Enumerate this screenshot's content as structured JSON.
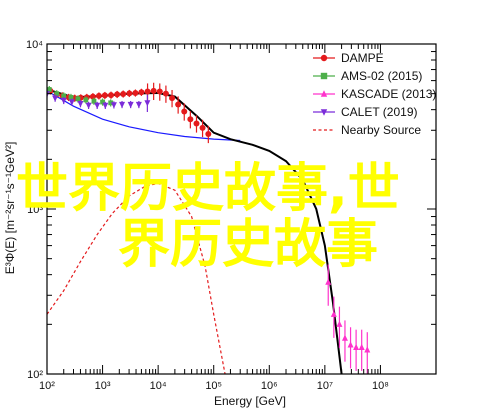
{
  "chart_data": {
    "type": "scatter",
    "xlabel": "Energy [GeV]",
    "ylabel": "E³Φ(E) [m⁻²sr⁻¹s⁻¹GeV²]",
    "xscale": "log",
    "yscale": "log",
    "xlim": [
      100,
      1000000000
    ],
    "ylim": [
      100,
      10000
    ],
    "x_ticks": [
      "10²",
      "10³",
      "10⁴",
      "10⁵",
      "10⁶",
      "10⁷",
      "10⁸"
    ],
    "y_ticks": [
      "10²",
      "10³",
      "10⁴"
    ],
    "legend_position": "top-right",
    "series": [
      {
        "name": "DAMPE",
        "color": "#e41a1c",
        "marker": "circle",
        "x": [
          55,
          70,
          90,
          115,
          150,
          190,
          245,
          315,
          405,
          520,
          670,
          860,
          1100,
          1420,
          1830,
          2350,
          3030,
          3900,
          5000,
          6450,
          8300,
          10700,
          13800,
          17800,
          22900,
          29500,
          38000,
          49000,
          63000,
          80000
        ],
        "y": [
          5900,
          5700,
          5450,
          5200,
          4950,
          4850,
          4750,
          4700,
          4720,
          4750,
          4800,
          4850,
          4880,
          4900,
          4950,
          4980,
          5020,
          5050,
          5100,
          5150,
          5200,
          5150,
          5000,
          4700,
          4300,
          3900,
          3500,
          3300,
          3100,
          2850
        ]
      },
      {
        "name": "AMS-02 (2015)",
        "color": "#4daf4a",
        "marker": "square",
        "x": [
          45,
          60,
          80,
          110,
          150,
          200,
          270,
          360,
          500,
          700,
          1000,
          1400
        ],
        "y": [
          6900,
          6200,
          5700,
          5300,
          5000,
          4850,
          4750,
          4650,
          4580,
          4500,
          4450,
          4400
        ]
      },
      {
        "name": "KASCADE (2013)",
        "color": "#ff33cc",
        "marker": "triangle",
        "x": [
          11500000,
          14500000,
          18300000,
          23000000,
          29000000,
          36500000,
          46000000,
          58000000
        ],
        "y": [
          360,
          230,
          200,
          165,
          150,
          145,
          145,
          140
        ]
      },
      {
        "name": "CALET (2019)",
        "color": "#7b2cd9",
        "marker": "triangle-down",
        "x": [
          50,
          70,
          100,
          140,
          200,
          280,
          400,
          560,
          800,
          1120,
          1600,
          2240,
          3200,
          4500,
          6400
        ],
        "y": [
          5900,
          5400,
          5000,
          4700,
          4550,
          4450,
          4350,
          4250,
          4250,
          4250,
          4280,
          4300,
          4300,
          4300,
          4400
        ]
      },
      {
        "name": "Nearby Source",
        "color": "#e41a1c",
        "style": "dashed",
        "x": [
          100,
          200,
          400,
          800,
          1500,
          3000,
          6000,
          10000,
          20000,
          40000,
          70000,
          100000,
          160000
        ],
        "y": [
          230,
          320,
          480,
          700,
          940,
          1200,
          1380,
          1430,
          1300,
          900,
          450,
          230,
          100
        ]
      }
    ],
    "model_lines": [
      {
        "color": "#1a1aff",
        "x": [
          60,
          100,
          300,
          1000,
          3000,
          10000,
          30000,
          100000,
          300000
        ],
        "y": [
          5950,
          5200,
          4200,
          3500,
          3150,
          2900,
          2750,
          2650,
          2600
        ]
      },
      {
        "color": "#000000",
        "x": [
          60,
          100,
          300,
          1000,
          3000,
          10000,
          20000,
          50000,
          100000,
          200000,
          500000,
          1000000,
          2000000,
          4000000,
          7000000,
          10000000,
          14000000,
          20000000
        ],
        "y": [
          6050,
          5300,
          4750,
          4850,
          5000,
          5050,
          4800,
          3650,
          2900,
          2650,
          2450,
          2250,
          1950,
          1500,
          1000,
          600,
          270,
          100
        ]
      }
    ]
  },
  "watermark": {
    "line1": "世界历史故事,世",
    "line2": "界历史故事"
  }
}
